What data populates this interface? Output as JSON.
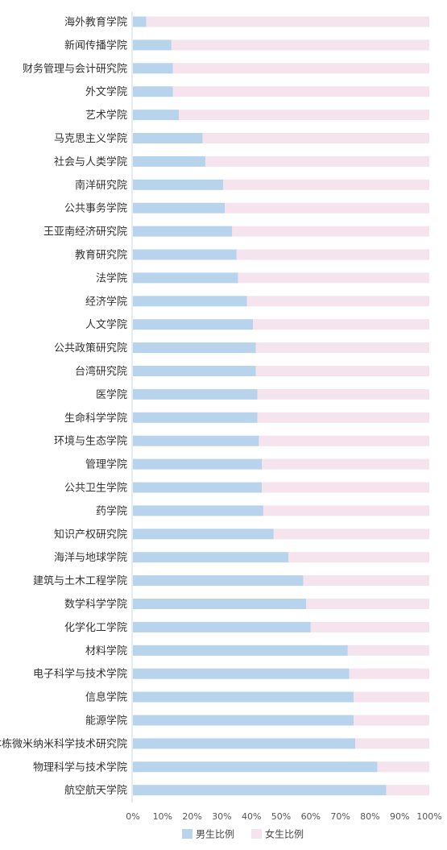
{
  "chart_data": {
    "type": "bar",
    "orientation": "horizontal",
    "stacked": true,
    "percent": true,
    "categories": [
      "海外教育学院",
      "新闻传播学院",
      "财务管理与会计研究院",
      "外文学院",
      "艺术学院",
      "马克思主义学院",
      "社会与人类学院",
      "南洋研究院",
      "公共事务学院",
      "王亚南经济研究院",
      "教育研究院",
      "法学院",
      "经济学院",
      "人文学院",
      "公共政策研究院",
      "台湾研究院",
      "医学院",
      "生命科学学院",
      "环境与生态学院",
      "管理学院",
      "公共卫生学院",
      "药学院",
      "知识产权研究院",
      "海洋与地球学院",
      "建筑与土木工程学院",
      "数学科学学院",
      "化学化工学院",
      "材料学院",
      "电子科学与技术学院",
      "信息学院",
      "能源学院",
      "萨本栋微米纳米科学技术研究院",
      "物理科学与技术学院",
      "航空航天学院"
    ],
    "series": [
      {
        "name": "男生比例",
        "color": "#b8d3ec",
        "values": [
          4.5,
          13,
          13.5,
          13.5,
          15.5,
          23.5,
          24.5,
          30.5,
          31,
          33.5,
          35,
          35.5,
          38.5,
          40.5,
          41.5,
          41.5,
          42,
          42,
          42.5,
          43.5,
          43.5,
          44,
          47.5,
          52.5,
          57.5,
          58.5,
          60,
          72.5,
          73,
          74.5,
          74.5,
          75,
          82.5,
          85.5
        ]
      },
      {
        "name": "女生比例",
        "color": "#f5e3ee",
        "values": [
          95.5,
          87,
          86.5,
          86.5,
          84.5,
          76.5,
          75.5,
          69.5,
          69,
          66.5,
          65,
          64.5,
          61.5,
          59.5,
          58.5,
          58.5,
          58,
          58,
          57.5,
          56.5,
          56.5,
          56,
          52.5,
          47.5,
          42.5,
          41.5,
          40,
          27.5,
          27,
          25.5,
          25.5,
          25,
          17.5,
          14.5
        ]
      }
    ],
    "xlim": [
      0,
      100
    ],
    "xticks": [
      "0%",
      "10%",
      "20%",
      "30%",
      "40%",
      "50%",
      "60%",
      "70%",
      "80%",
      "90%",
      "100%"
    ],
    "grid": false,
    "legend_position": "bottom-center"
  }
}
